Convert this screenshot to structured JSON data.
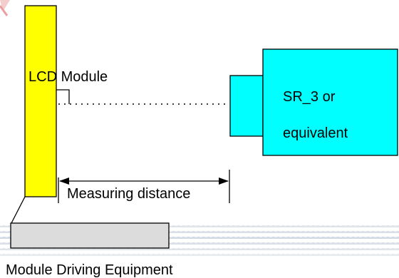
{
  "labels": {
    "lcd_module": "LCD Module",
    "sr_line1": "SR_3 or",
    "sr_line2": "equivalent",
    "measuring_distance": "Measuring distance",
    "driving_equipment": "Module Driving Equipment"
  },
  "colors": {
    "lcd_fill": "#ffff00",
    "sr_fill": "#00ffff",
    "equipment_fill": "#dcdcdc",
    "stripe": "#b8c4d2",
    "watermark": "#e8a0a0",
    "outline": "#000000"
  }
}
